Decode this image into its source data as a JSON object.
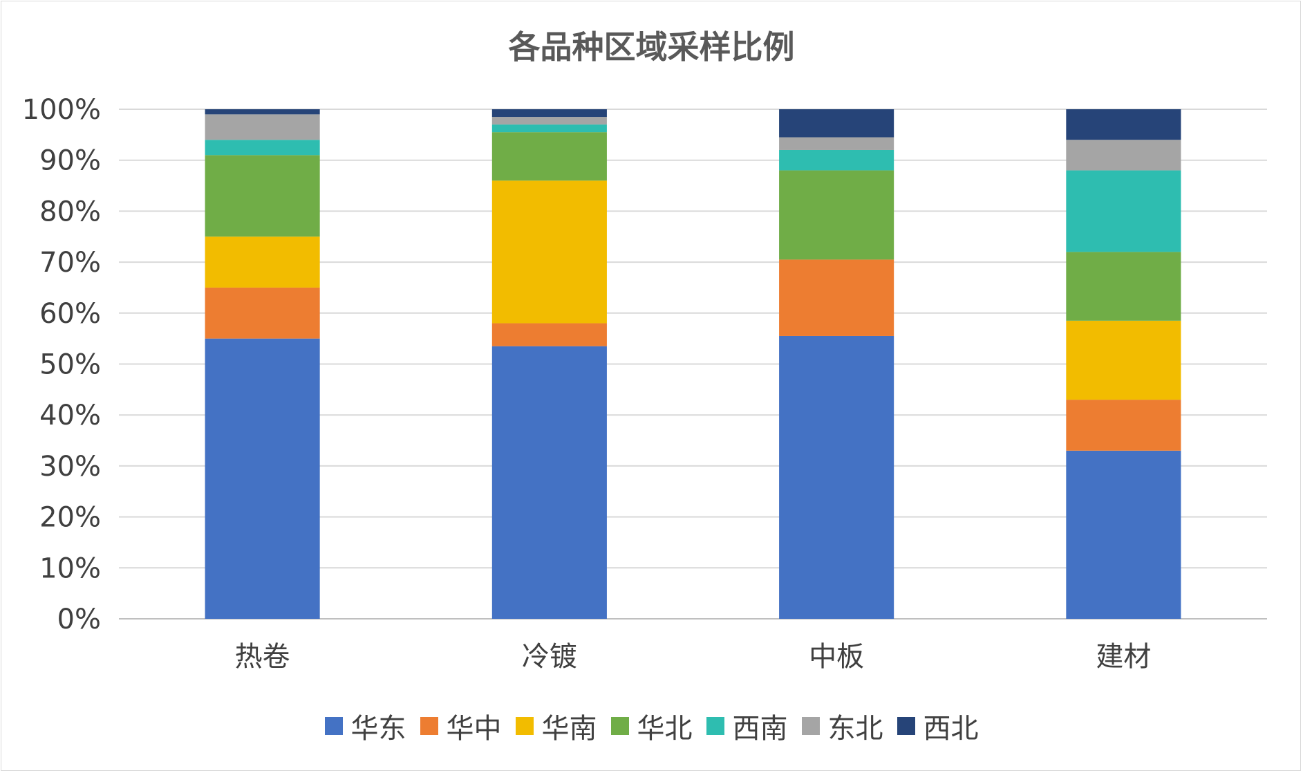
{
  "chart_data": {
    "type": "bar",
    "stacked": true,
    "percent": true,
    "title": "各品种区域采样比例",
    "xlabel": "",
    "ylabel": "",
    "ylim": [
      0,
      100
    ],
    "yticks": [
      "0%",
      "10%",
      "20%",
      "30%",
      "40%",
      "50%",
      "60%",
      "70%",
      "80%",
      "90%",
      "100%"
    ],
    "grid": true,
    "legend": "bottom",
    "categories": [
      "热卷",
      "冷镀",
      "中板",
      "建材"
    ],
    "series": [
      {
        "name": "华东",
        "color": "#4472c4",
        "values": [
          55.0,
          53.5,
          55.5,
          33.0
        ]
      },
      {
        "name": "华中",
        "color": "#ed7d31",
        "values": [
          10.0,
          4.5,
          15.0,
          10.0
        ]
      },
      {
        "name": "华南",
        "color": "#f2bc00",
        "values": [
          10.0,
          28.0,
          0,
          15.5
        ]
      },
      {
        "name": "华北",
        "color": "#70ad47",
        "values": [
          16.0,
          9.5,
          17.5,
          13.5
        ]
      },
      {
        "name": "西南",
        "color": "#2ebdb0",
        "values": [
          3.0,
          1.5,
          4.0,
          16.0
        ]
      },
      {
        "name": "东北",
        "color": "#a5a5a5",
        "values": [
          5.0,
          1.5,
          2.5,
          6.0
        ]
      },
      {
        "name": "西北",
        "color": "#264478",
        "values": [
          1.0,
          1.5,
          5.5,
          6.0
        ]
      }
    ]
  }
}
